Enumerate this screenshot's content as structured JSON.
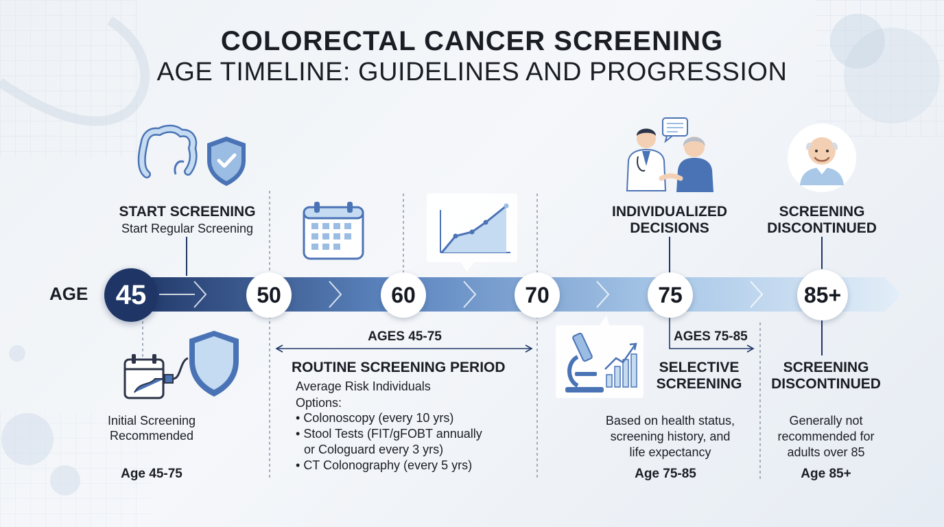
{
  "title": {
    "line1": "COLORECTAL CANCER SCREENING",
    "line2": "AGE TIMELINE: GUIDELINES AND PROGRESSION"
  },
  "timeline": {
    "age_label": "AGE",
    "markers": [
      "45",
      "50",
      "60",
      "70",
      "75",
      "85+"
    ]
  },
  "start": {
    "heading": "START SCREENING",
    "subheading": "Start Regular Screening",
    "note": "Initial Screening Recommended",
    "age_range": "Age 45-75"
  },
  "routine": {
    "range_label": "AGES 45-75",
    "heading": "ROUTINE SCREENING PERIOD",
    "audience": "Average Risk Individuals",
    "options_label": "Options:",
    "options": [
      "Colonoscopy (every 10 yrs)",
      "Stool Tests (FIT/gFOBT annually",
      "or Cologuard every 3 yrs)",
      "CT Colonography (every 5 yrs)"
    ]
  },
  "individualized": {
    "heading_line1": "INDIVIDUALIZED",
    "heading_line2": "DECISIONS"
  },
  "selective": {
    "range_label": "AGES 75-85",
    "heading_line1": "SELECTIVE",
    "heading_line2": "SCREENING",
    "desc_line1": "Based on health status,",
    "desc_line2": "screening history, and",
    "desc_line3": "life expectancy",
    "age_range": "Age 75-85"
  },
  "discontinued_top": {
    "heading_line1": "SCREENING",
    "heading_line2": "DISCONTINUED"
  },
  "discontinued_bottom": {
    "heading_line1": "SCREENING",
    "heading_line2": "DISCONTINUED",
    "desc_line1": "Generally not",
    "desc_line2": "recommended for",
    "desc_line3": "adults over 85",
    "age_range": "Age 85+"
  },
  "colors": {
    "navy": "#1f3566",
    "arrow_mid": "#5d86c0",
    "arrow_light": "#dbe9f6",
    "icon_blue": "#4a73b5",
    "icon_fill": "#c4dbf2"
  }
}
